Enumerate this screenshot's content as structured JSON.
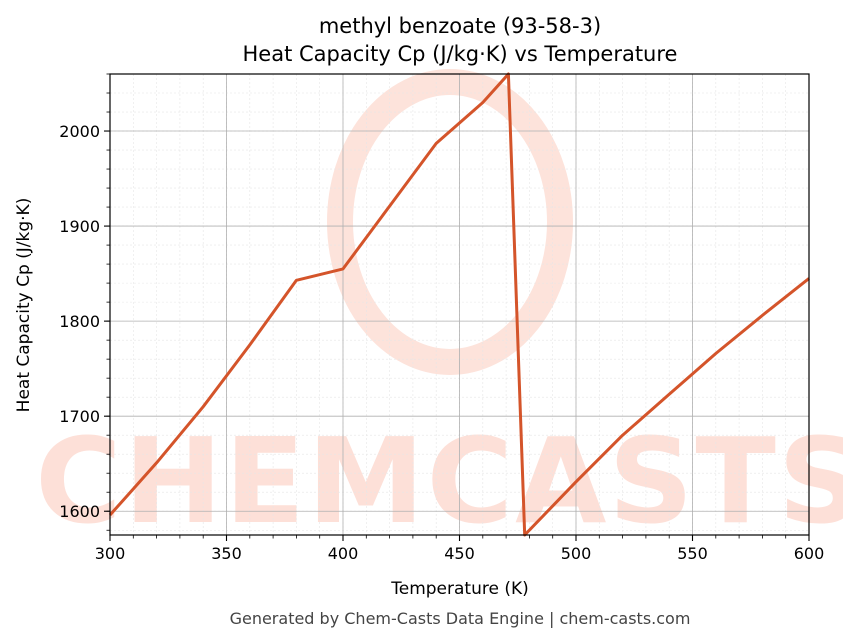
{
  "chart_data": {
    "type": "line",
    "title": "methyl benzoate (93-58-3)",
    "subtitle": "Heat Capacity Cp (J/kg·K) vs Temperature",
    "xlabel": "Temperature (K)",
    "ylabel": "Heat Capacity Cp (J/kg·K)",
    "xlim": [
      300,
      600
    ],
    "ylim": [
      1575,
      2060
    ],
    "xticks": [
      300,
      350,
      400,
      450,
      500,
      550,
      600
    ],
    "yticks": [
      1600,
      1700,
      1800,
      1900,
      2000
    ],
    "grid": true,
    "line_color": "#d4542a",
    "series": [
      {
        "x": [
          300,
          320,
          340,
          360,
          380,
          400,
          420,
          440,
          460,
          471,
          478,
          500,
          520,
          540,
          560,
          580,
          600
        ],
        "y": [
          1596,
          1651,
          1710,
          1775,
          1843,
          1855,
          1921,
          1987,
          2030,
          2060,
          1575,
          1631,
          1680,
          1723,
          1766,
          1806,
          1845
        ]
      }
    ]
  },
  "watermark": "CHEMCASTS",
  "footer": "Generated by Chem-Casts Data Engine | chem-casts.com"
}
